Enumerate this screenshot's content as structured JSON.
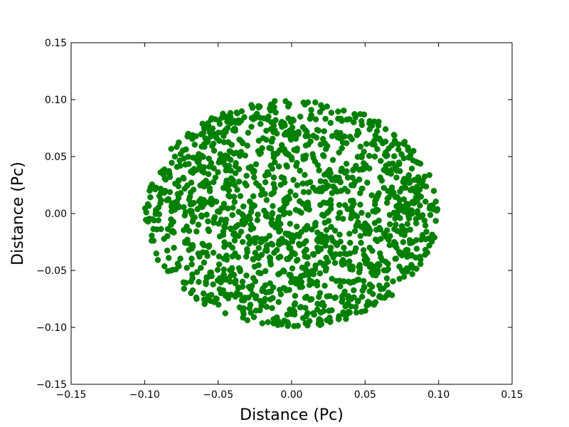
{
  "chart_data": {
    "type": "scatter",
    "title": "",
    "xlabel": "Distance (Pc)",
    "ylabel": "Distance (Pc)",
    "xlim": [
      -0.15,
      0.15
    ],
    "ylim": [
      -0.15,
      0.15
    ],
    "x_ticks": [
      -0.15,
      -0.1,
      -0.05,
      0.0,
      0.05,
      0.1,
      0.15
    ],
    "x_tick_labels": [
      "−0.15",
      "−0.10",
      "−0.05",
      "0.00",
      "0.05",
      "0.10",
      "0.15"
    ],
    "y_ticks": [
      -0.15,
      -0.1,
      -0.05,
      0.0,
      0.05,
      0.1,
      0.15
    ],
    "y_tick_labels": [
      "−0.15",
      "−0.10",
      "−0.05",
      "0.00",
      "0.05",
      "0.10",
      "0.15"
    ],
    "grid": false,
    "marker_color": "#008000",
    "series": [
      {
        "distribution": "uniform points filling a circle",
        "center": [
          0.0,
          0.0
        ],
        "radius": 0.1,
        "approx_point_count": 1500
      }
    ]
  }
}
